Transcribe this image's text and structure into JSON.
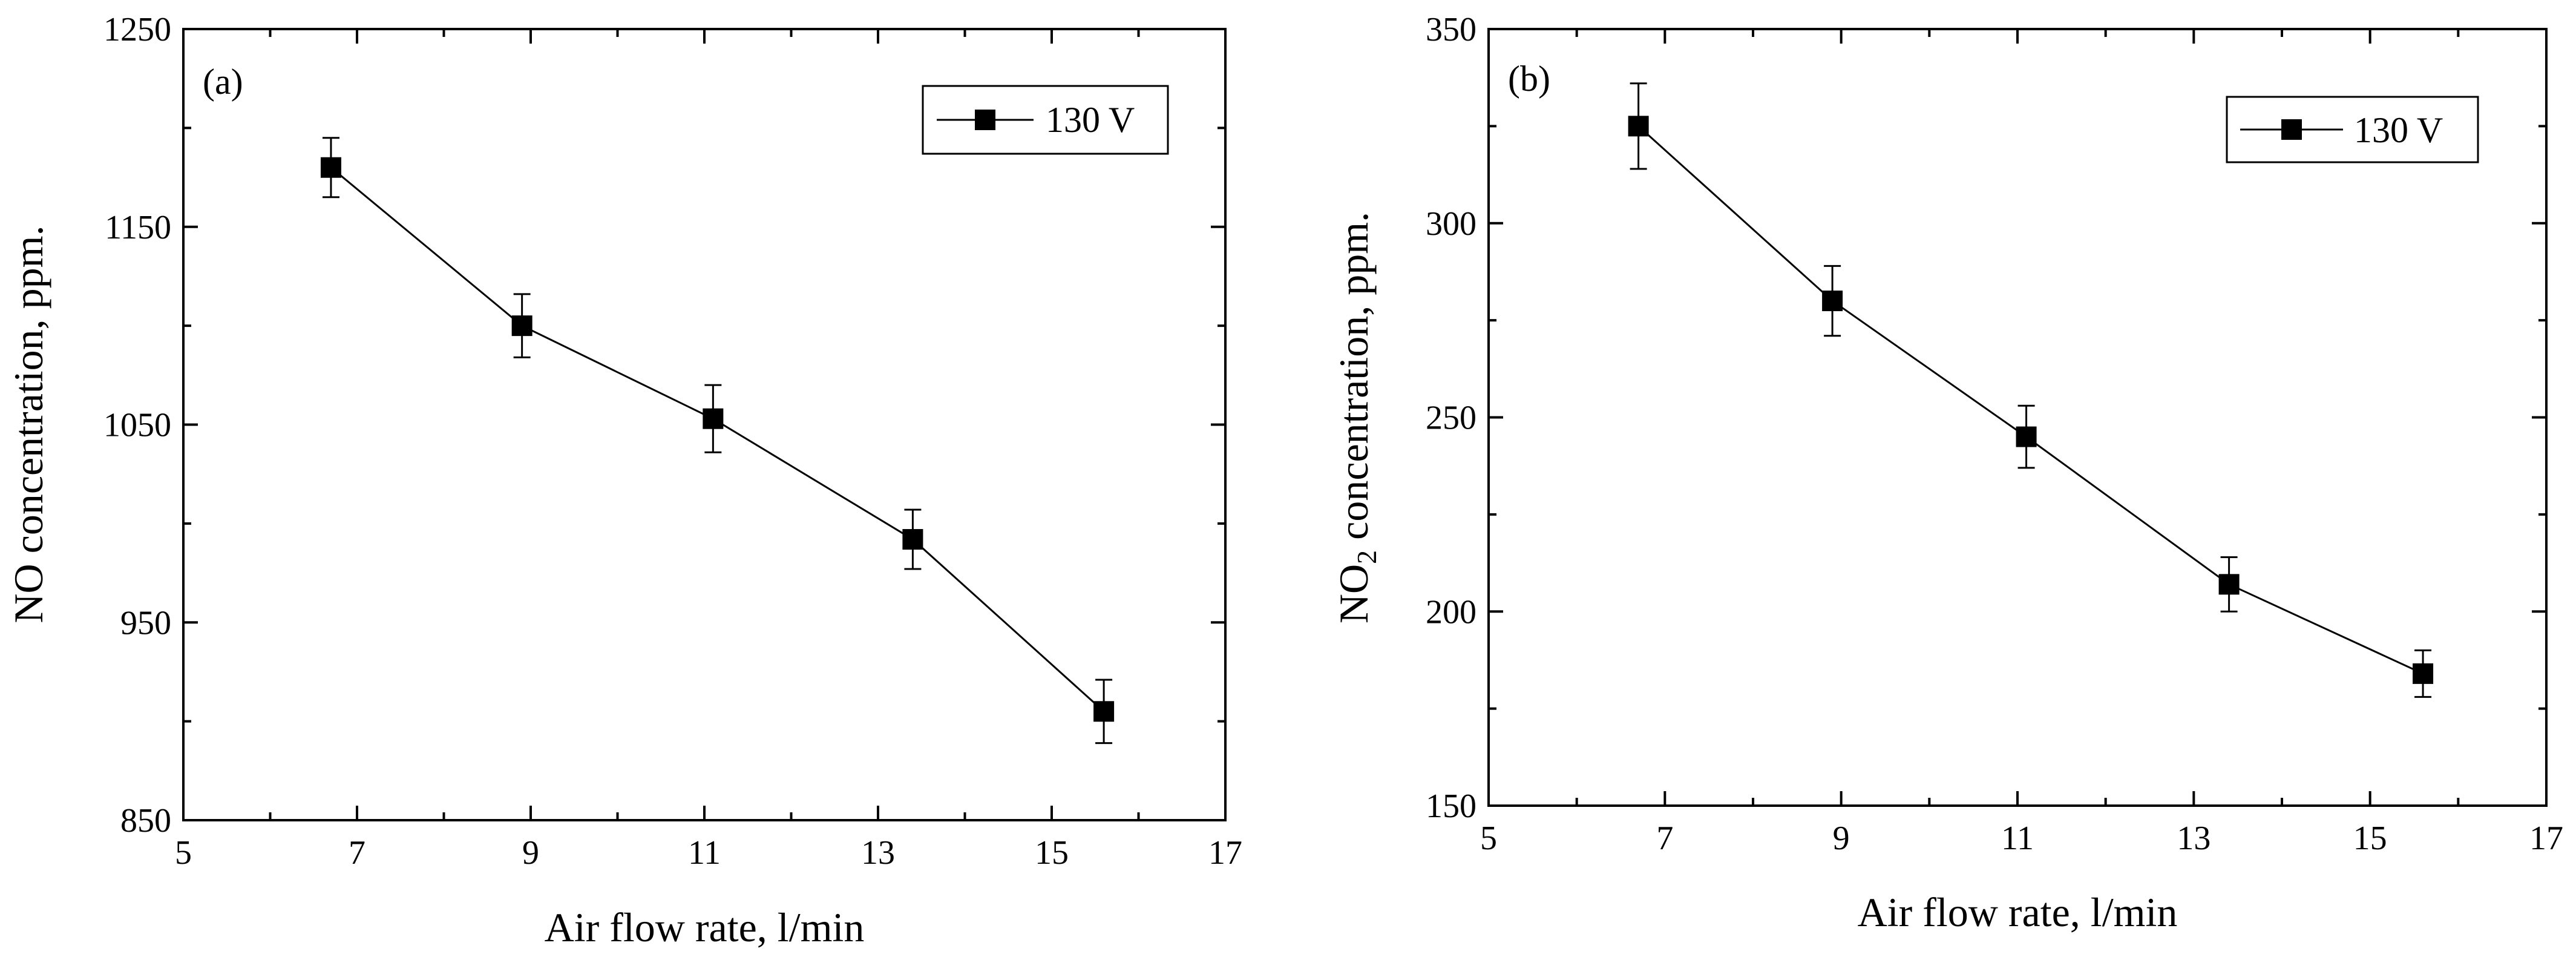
{
  "colors": {
    "ink": "#000000",
    "background": "#ffffff"
  },
  "chart_data": [
    {
      "type": "line",
      "panel_label": "(a)",
      "xlabel": "Air flow rate, l/min",
      "ylabel": "NO concentration, ppm.",
      "xlim": [
        5,
        17
      ],
      "ylim": [
        850,
        1250
      ],
      "x_ticks": [
        5,
        7,
        9,
        11,
        13,
        15,
        17
      ],
      "x_tick_labels": [
        "5",
        "7",
        "9",
        "11",
        "13",
        "15",
        "17"
      ],
      "y_ticks": [
        850,
        950,
        1050,
        1150,
        1250
      ],
      "y_tick_labels": [
        "850",
        "950",
        "1050",
        "1150",
        "1250"
      ],
      "grid": false,
      "legend_position": "top-right",
      "series": [
        {
          "name": "130 V",
          "marker": "square",
          "x": [
            6.7,
            8.9,
            11.1,
            13.4,
            15.6
          ],
          "values": [
            1180,
            1100,
            1053,
            992,
            905
          ],
          "error": [
            15,
            16,
            17,
            15,
            16
          ]
        }
      ]
    },
    {
      "type": "line",
      "panel_label": "(b)",
      "xlabel": "Air flow rate, l/min",
      "ylabel": "NO",
      "ylabel_sub": "2",
      "ylabel_rest": " concentration, ppm.",
      "xlim": [
        5,
        17
      ],
      "ylim": [
        150,
        350
      ],
      "x_ticks": [
        5,
        7,
        9,
        11,
        13,
        15,
        17
      ],
      "x_tick_labels": [
        "5",
        "7",
        "9",
        "11",
        "13",
        "15",
        "17"
      ],
      "y_ticks": [
        150,
        200,
        250,
        300,
        350
      ],
      "y_tick_labels": [
        "150",
        "200",
        "250",
        "300",
        "350"
      ],
      "grid": false,
      "legend_position": "top-right",
      "series": [
        {
          "name": "130 V",
          "marker": "square",
          "x": [
            6.7,
            8.9,
            11.1,
            13.4,
            15.6
          ],
          "values": [
            325,
            280,
            245,
            207,
            184
          ],
          "error": [
            11,
            9,
            8,
            7,
            6
          ]
        }
      ]
    }
  ]
}
